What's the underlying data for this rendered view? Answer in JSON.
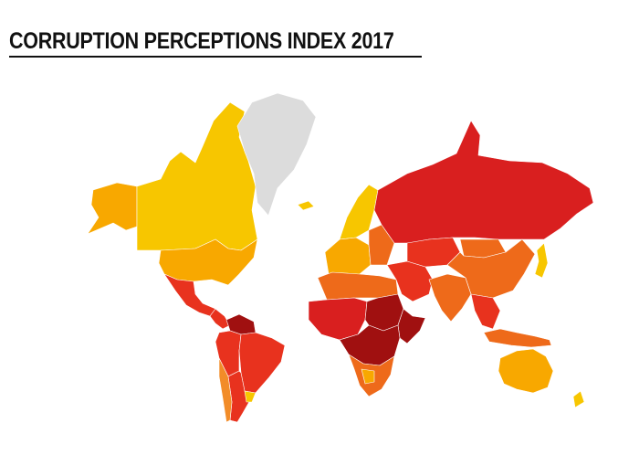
{
  "title": "CORRUPTION PERCEPTIONS INDEX 2017",
  "colors": {
    "very_clean": "#f7c600",
    "clean": "#f8a800",
    "moderate": "#f28c28",
    "mid": "#ee6a1a",
    "corrupt": "#e8321e",
    "very_corrupt": "#d91f1f",
    "highly_corrupt": "#a01010",
    "no_data": "#dcdcdc"
  },
  "regions": [
    {
      "name": "alaska",
      "color_key": "clean"
    },
    {
      "name": "canada",
      "color_key": "very_clean"
    },
    {
      "name": "greenland",
      "color_key": "no_data"
    },
    {
      "name": "usa",
      "color_key": "clean"
    },
    {
      "name": "mexico",
      "color_key": "corrupt"
    },
    {
      "name": "central-america",
      "color_key": "corrupt"
    },
    {
      "name": "venezuela",
      "color_key": "highly_corrupt"
    },
    {
      "name": "brazil",
      "color_key": "corrupt"
    },
    {
      "name": "south-america-west",
      "color_key": "corrupt"
    },
    {
      "name": "argentina",
      "color_key": "corrupt"
    },
    {
      "name": "chile",
      "color_key": "moderate"
    },
    {
      "name": "uruguay",
      "color_key": "very_clean"
    },
    {
      "name": "iceland",
      "color_key": "very_clean"
    },
    {
      "name": "scandinavia",
      "color_key": "very_clean"
    },
    {
      "name": "western-europe",
      "color_key": "clean"
    },
    {
      "name": "eastern-europe",
      "color_key": "mid"
    },
    {
      "name": "russia",
      "color_key": "very_corrupt"
    },
    {
      "name": "north-africa",
      "color_key": "mid"
    },
    {
      "name": "sahel",
      "color_key": "very_corrupt"
    },
    {
      "name": "sudan",
      "color_key": "highly_corrupt"
    },
    {
      "name": "central-africa",
      "color_key": "highly_corrupt"
    },
    {
      "name": "horn-of-africa",
      "color_key": "highly_corrupt"
    },
    {
      "name": "southern-africa",
      "color_key": "mid"
    },
    {
      "name": "botswana",
      "color_key": "clean"
    },
    {
      "name": "middle-east",
      "color_key": "corrupt"
    },
    {
      "name": "central-asia",
      "color_key": "corrupt"
    },
    {
      "name": "south-asia",
      "color_key": "mid"
    },
    {
      "name": "china",
      "color_key": "mid"
    },
    {
      "name": "mongolia",
      "color_key": "mid"
    },
    {
      "name": "japan",
      "color_key": "very_clean"
    },
    {
      "name": "southeast-asia",
      "color_key": "corrupt"
    },
    {
      "name": "indonesia",
      "color_key": "mid"
    },
    {
      "name": "australia",
      "color_key": "clean"
    },
    {
      "name": "new-zealand",
      "color_key": "very_clean"
    }
  ]
}
